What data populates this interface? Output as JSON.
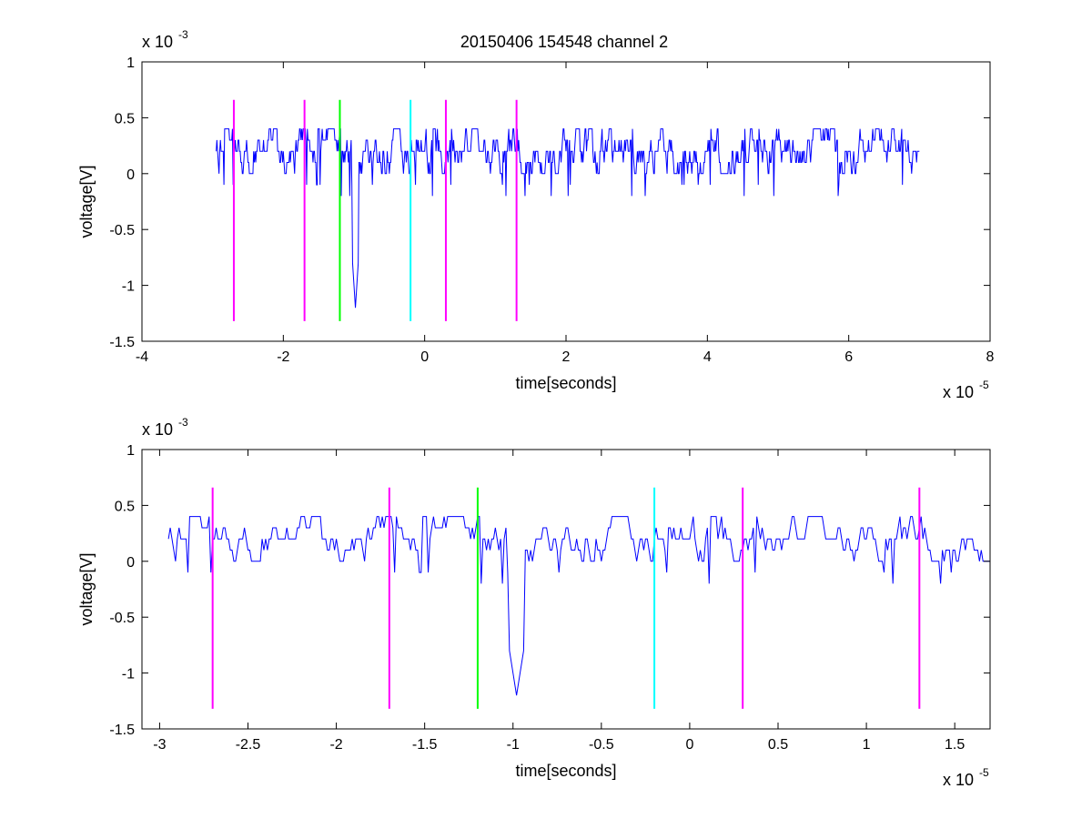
{
  "figure": {
    "title": "20150406 154548 channel 2"
  },
  "chart_data": [
    {
      "type": "line",
      "xlabel": "time[seconds]",
      "ylabel": "voltage[V]",
      "x_exponent_label": "x 10",
      "x_exponent": "-5",
      "y_exponent_label": "x 10",
      "y_exponent": "-3",
      "xlim": [
        -4e-05,
        8e-05
      ],
      "ylim": [
        -0.0015,
        0.001
      ],
      "xticks": [
        -4e-05,
        -2e-05,
        0,
        2e-05,
        4e-05,
        6e-05,
        8e-05
      ],
      "xtick_labels": [
        "-4",
        "-2",
        "0",
        "2",
        "4",
        "6",
        "8"
      ],
      "yticks": [
        -0.0015,
        -0.001,
        -0.0005,
        0,
        0.0005,
        0.001
      ],
      "ytick_labels": [
        "-1.5",
        "-1",
        "-0.5",
        "0",
        "0.5",
        "1"
      ],
      "signal": {
        "color": "#0000ff",
        "x_start": -2.95e-05,
        "x_end": 7e-05,
        "step": 1e-07,
        "baseline_levels": [
          0,
          0.0001,
          0.0002,
          0.0003,
          0.0004
        ],
        "spike_time": -9.8e-06,
        "spike_min": -0.0012
      },
      "markers": [
        {
          "x": -2.7e-05,
          "color": "#ff00ff"
        },
        {
          "x": -1.7e-05,
          "color": "#ff00ff"
        },
        {
          "x": -1.2e-05,
          "color": "#00ff00"
        },
        {
          "x": -2e-06,
          "color": "#00ffff"
        },
        {
          "x": 3e-06,
          "color": "#ff00ff"
        },
        {
          "x": 1.3e-05,
          "color": "#ff00ff"
        }
      ],
      "marker_range": [
        -0.00132,
        0.00066
      ]
    },
    {
      "type": "line",
      "xlabel": "time[seconds]",
      "ylabel": "voltage[V]",
      "x_exponent_label": "x 10",
      "x_exponent": "-5",
      "y_exponent_label": "x 10",
      "y_exponent": "-3",
      "xlim": [
        -3.1e-05,
        1.7e-05
      ],
      "ylim": [
        -0.0015,
        0.001
      ],
      "xticks": [
        -3e-05,
        -2.5e-05,
        -2e-05,
        -1.5e-05,
        -1e-05,
        -5e-06,
        0,
        5e-06,
        1e-05,
        1.5e-05
      ],
      "xtick_labels": [
        "-3",
        "-2.5",
        "-2",
        "-1.5",
        "-1",
        "-0.5",
        "0",
        "0.5",
        "1",
        "1.5"
      ],
      "yticks": [
        -0.0015,
        -0.001,
        -0.0005,
        0,
        0.0005,
        0.001
      ],
      "ytick_labels": [
        "-1.5",
        "-1",
        "-0.5",
        "0",
        "0.5",
        "1"
      ],
      "signal": {
        "color": "#0000ff",
        "x_start": -2.95e-05,
        "x_end": 1.7e-05,
        "step": 1e-07,
        "baseline_levels": [
          0,
          0.0001,
          0.0002,
          0.0003,
          0.0004
        ],
        "spike_time": -9.8e-06,
        "spike_min": -0.0012
      },
      "markers": [
        {
          "x": -2.7e-05,
          "color": "#ff00ff"
        },
        {
          "x": -1.7e-05,
          "color": "#ff00ff"
        },
        {
          "x": -1.2e-05,
          "color": "#00ff00"
        },
        {
          "x": -2e-06,
          "color": "#00ffff"
        },
        {
          "x": 3e-06,
          "color": "#ff00ff"
        },
        {
          "x": 1.3e-05,
          "color": "#ff00ff"
        }
      ],
      "marker_range": [
        -0.00132,
        0.00066
      ]
    }
  ]
}
